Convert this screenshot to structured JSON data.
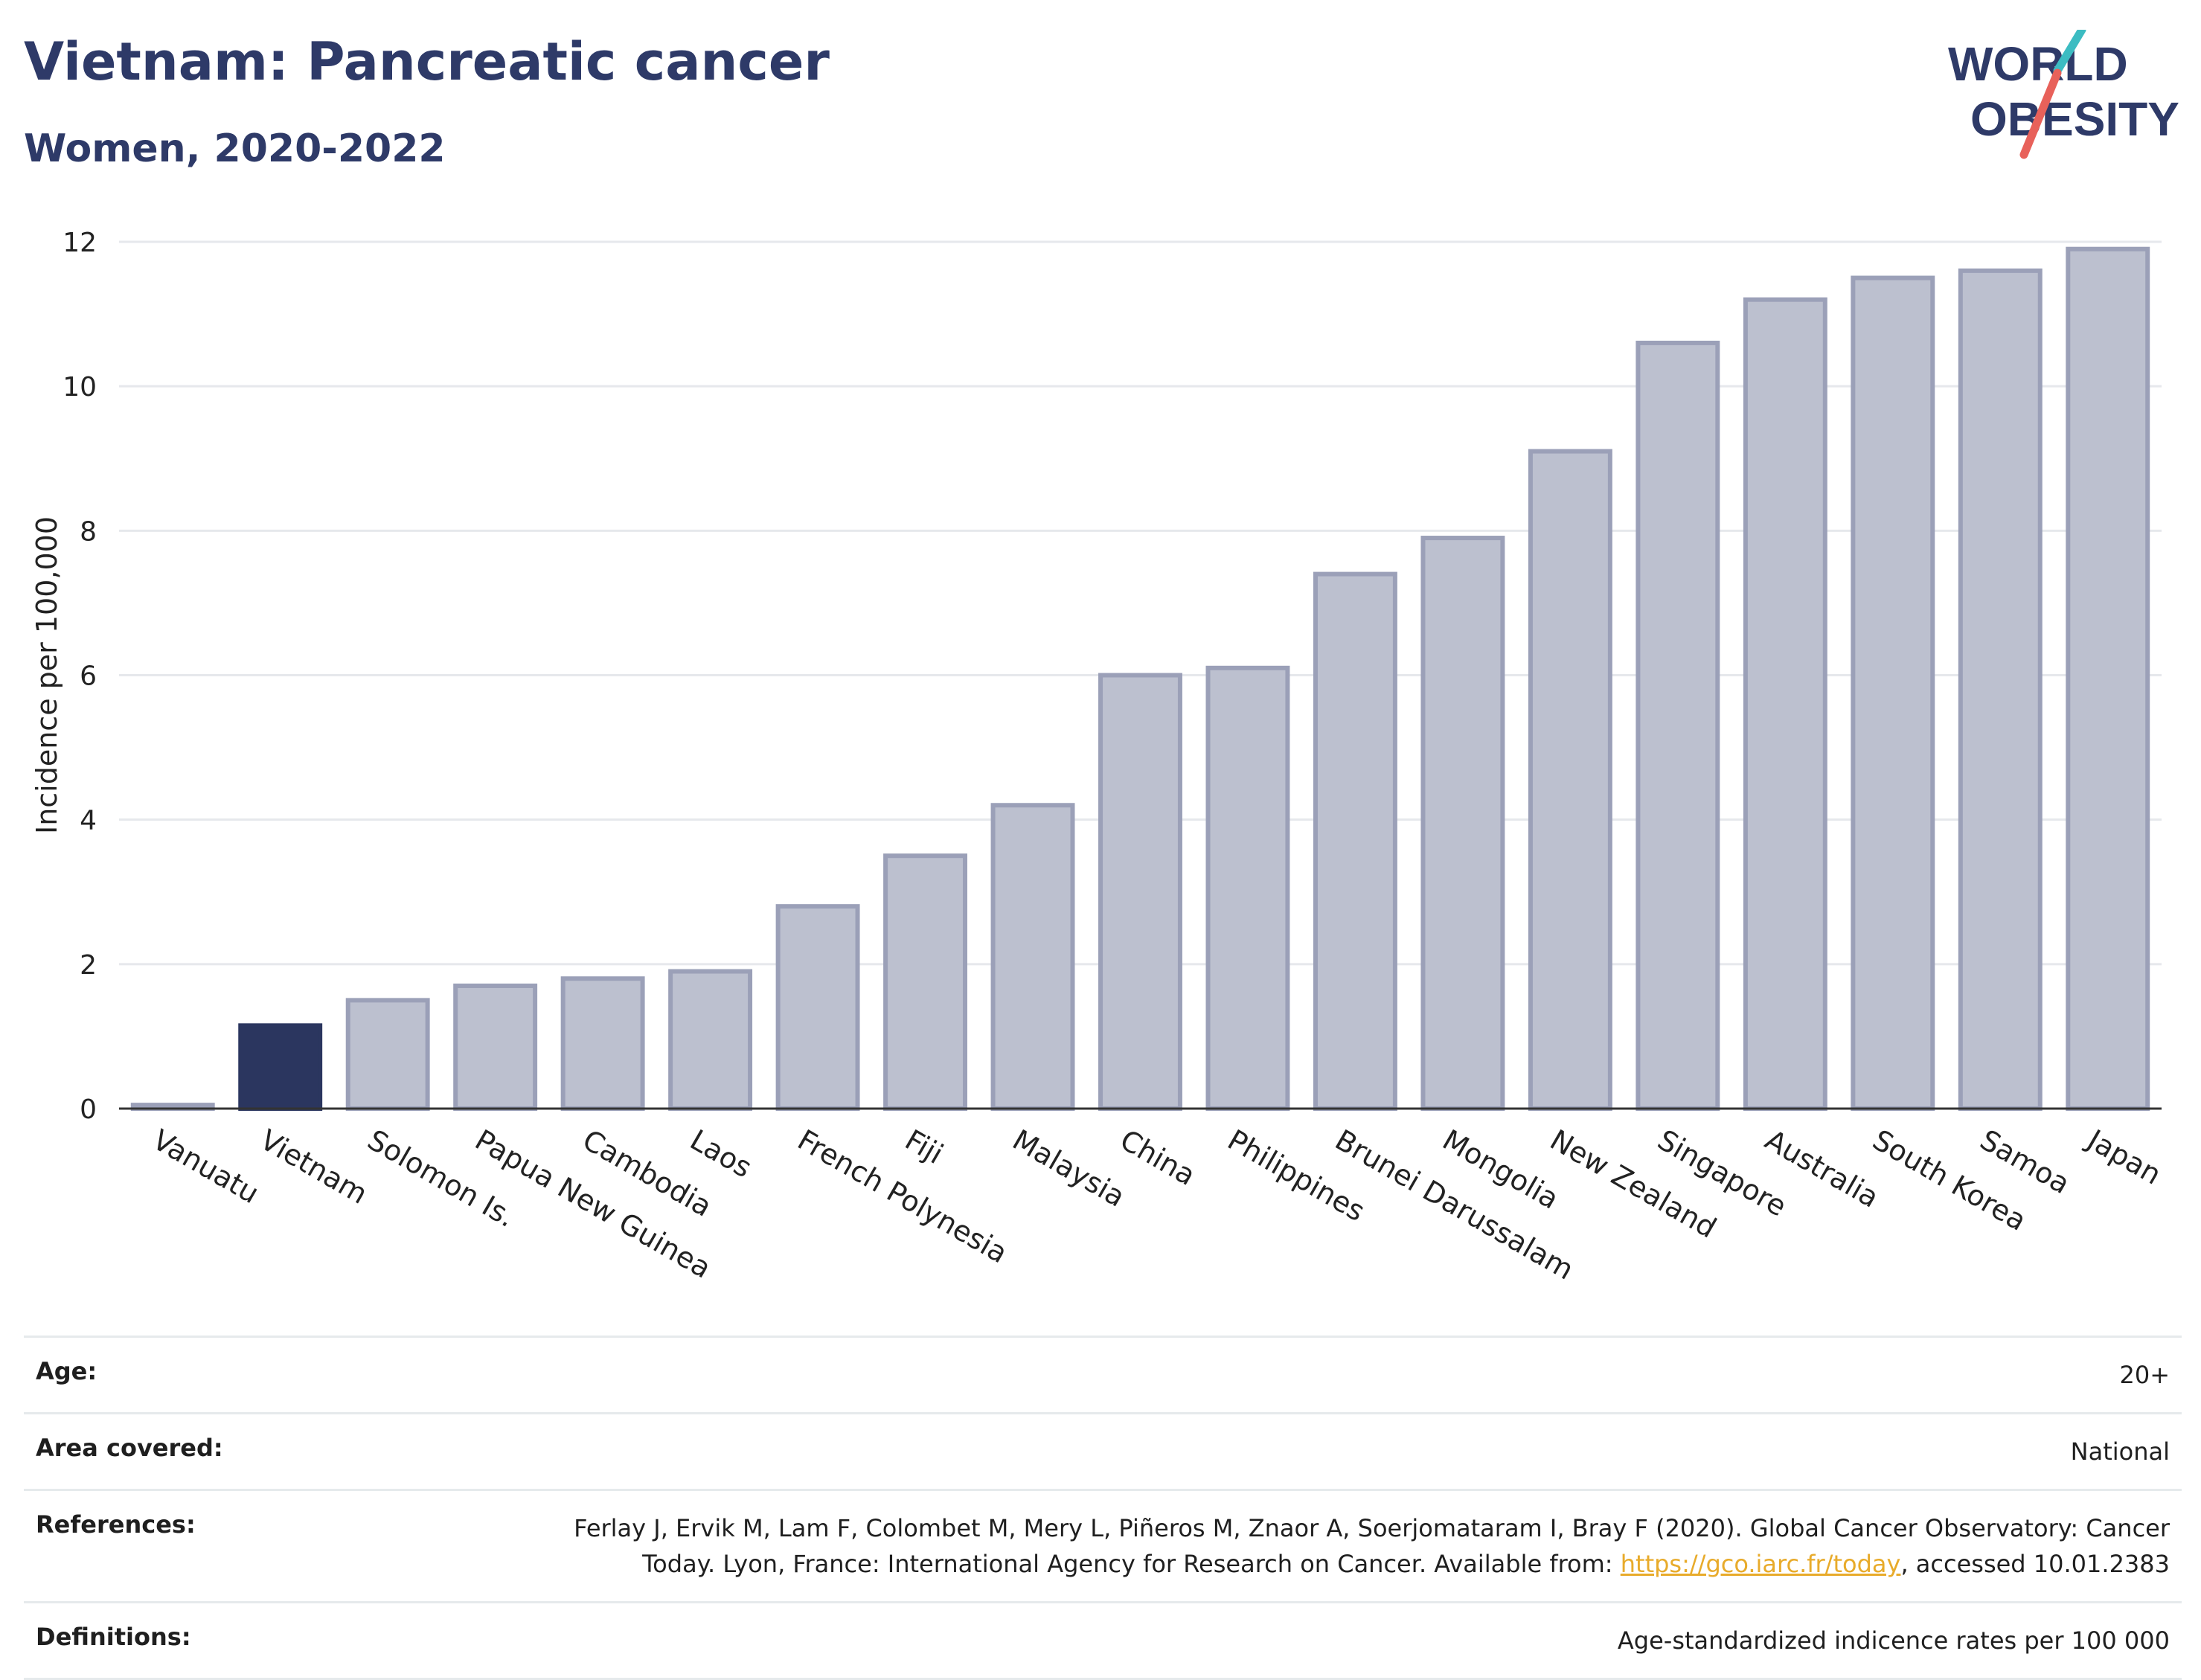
{
  "header": {
    "title": "Vietnam: Pancreatic cancer",
    "subtitle": "Women, 2020-2022"
  },
  "logo": {
    "line1": "WORLD",
    "line2": "OBESITY",
    "colors": {
      "text": "#2e3a68",
      "slash_teal": "#3cbcc2",
      "slash_red": "#e8615a"
    }
  },
  "chart_data": {
    "type": "bar",
    "categories": [
      "Vanuatu",
      "Vietnam",
      "Solomon Is.",
      "Papua New Guinea",
      "Cambodia",
      "Laos",
      "French Polynesia",
      "Fiji",
      "Malaysia",
      "China",
      "Philippines",
      "Brunei Darussalam",
      "Mongolia",
      "New Zealand",
      "Singapore",
      "Australia",
      "South Korea",
      "Samoa",
      "Japan"
    ],
    "values": [
      0.05,
      1.15,
      1.5,
      1.7,
      1.8,
      1.9,
      2.8,
      3.5,
      4.2,
      6.0,
      6.1,
      7.4,
      7.9,
      9.1,
      10.6,
      11.2,
      11.5,
      11.6,
      11.9
    ],
    "highlight": "Vietnam",
    "ylabel": "Incidence per 100,000",
    "xlabel": "",
    "ylim": [
      0,
      12
    ],
    "yticks": [
      0,
      2,
      4,
      6,
      8,
      10,
      12
    ],
    "grid": true,
    "colors": {
      "highlight": "#2b365f",
      "bar_fill": "#bcc0cf",
      "bar_stroke": "#9ba0b8",
      "grid": "#e6e8ec"
    }
  },
  "meta": {
    "age_label": "Age:",
    "age_value": "20+",
    "area_label": "Area covered:",
    "area_value": "National",
    "references_label": "References:",
    "references_text": "Ferlay J, Ervik M, Lam F, Colombet M, Mery L, Piñeros M, Znaor A, Soerjomataram I, Bray F (2020). Global Cancer Observatory: Cancer Today. Lyon, France: International Agency for Research on Cancer. Available from: ",
    "references_link": "https://gco.iarc.fr/today",
    "references_tail": ", accessed 10.01.2383",
    "definitions_label": "Definitions:",
    "definitions_value": "Age-standardized indicence rates per 100 000"
  }
}
